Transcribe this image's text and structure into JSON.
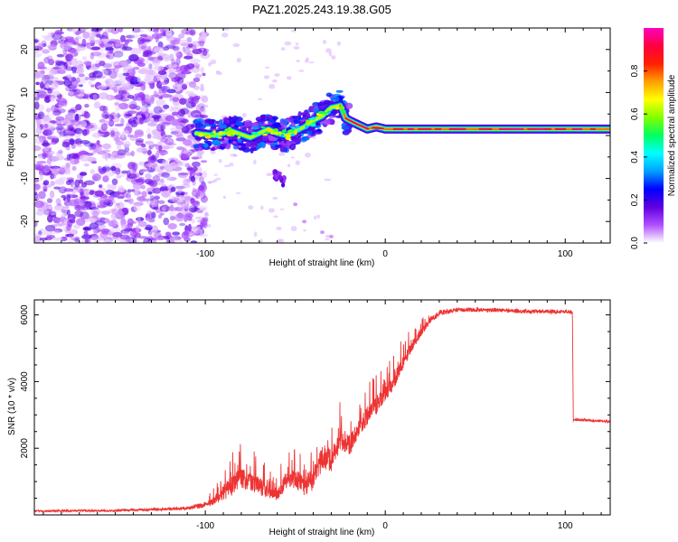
{
  "chart_data": [
    {
      "type": "heatmap",
      "title": "PAZ1.2025.243.19.38.G05",
      "xlabel": "Height of straight line (km)",
      "ylabel": "Frequency (Hz)",
      "xlim": [
        -195,
        125
      ],
      "ylim": [
        -25,
        25
      ],
      "xticks": [
        -100,
        0,
        100
      ],
      "yticks": [
        -20,
        -10,
        0,
        10,
        20
      ],
      "colorbar": {
        "label": "Normalized spectral amplitude",
        "range": [
          0,
          1
        ],
        "ticks": [
          "0.0",
          "0.2",
          "0.4",
          "0.6",
          "0.8"
        ],
        "tick_values": [
          0.0,
          0.2,
          0.4,
          0.6,
          0.8
        ],
        "colormap": [
          "#ffffff",
          "#b050ff",
          "#6000e0",
          "#0000ff",
          "#00a0ff",
          "#00ffff",
          "#00ff60",
          "#80ff00",
          "#ffff00",
          "#ffa000",
          "#ff2000",
          "#ff0040",
          "#ff00c0"
        ]
      },
      "ridge": {
        "x": [
          -105,
          -95,
          -85,
          -75,
          -65,
          -60,
          -55,
          -45,
          -40,
          -35,
          -30,
          -25,
          -22,
          -20,
          -15,
          -10,
          -5,
          0,
          10,
          30,
          60,
          100,
          125
        ],
        "y": [
          0.5,
          0.0,
          1.0,
          -0.5,
          1.5,
          0.5,
          0.0,
          2.0,
          3.5,
          4.5,
          6.5,
          7.0,
          4.0,
          3.5,
          2.5,
          1.5,
          2.0,
          1.5,
          1.5,
          1.5,
          1.5,
          1.5,
          1.5
        ],
        "secondary": {
          "x": [
            -62,
            -58,
            -56
          ],
          "y": [
            -9,
            -10,
            -11
          ]
        }
      }
    },
    {
      "type": "line",
      "title": "",
      "xlabel": "Height of straight line (km)",
      "ylabel": "SNR (10 * v/v)",
      "xlim": [
        -195,
        125
      ],
      "ylim": [
        0,
        6450
      ],
      "xticks": [
        -100,
        0,
        100
      ],
      "yticks": [
        2000,
        4000,
        6000
      ],
      "line_color": "#ee3333",
      "series": [
        {
          "name": "SNR",
          "x": [
            -195,
            -150,
            -110,
            -100,
            -95,
            -90,
            -85,
            -80,
            -75,
            -70,
            -65,
            -60,
            -55,
            -50,
            -45,
            -40,
            -35,
            -30,
            -25,
            -20,
            -15,
            -10,
            -5,
            0,
            5,
            10,
            15,
            20,
            25,
            30,
            40,
            60,
            80,
            100,
            104,
            104.5,
            110,
            125
          ],
          "y": [
            120,
            130,
            200,
            300,
            450,
            700,
            900,
            1150,
            1000,
            900,
            700,
            600,
            1100,
            1100,
            900,
            1100,
            1750,
            1650,
            2300,
            2100,
            2600,
            3000,
            3300,
            3650,
            4050,
            4600,
            5100,
            5500,
            5850,
            6050,
            6150,
            6150,
            6100,
            6100,
            6080,
            2850,
            2850,
            2800
          ],
          "noise": [
            50,
            50,
            80,
            150,
            300,
            600,
            800,
            800,
            700,
            700,
            500,
            400,
            700,
            800,
            800,
            900,
            900,
            900,
            800,
            800,
            700,
            700,
            700,
            600,
            600,
            500,
            400,
            300,
            200,
            150,
            100,
            100,
            100,
            100,
            100,
            60,
            60,
            60
          ]
        }
      ]
    }
  ]
}
